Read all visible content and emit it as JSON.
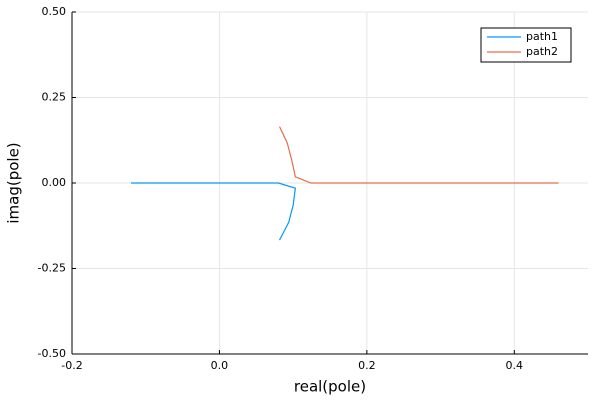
{
  "chart_data": {
    "type": "line",
    "xlabel": "real(pole)",
    "ylabel": "imag(pole)",
    "xlim": [
      -0.2,
      0.5
    ],
    "ylim": [
      -0.5,
      0.5
    ],
    "xticks": [
      -0.2,
      {
        "value": 0,
        "label": "0.0"
      },
      0.2,
      0.4
    ],
    "yticks": [
      {
        "value": -0.5,
        "label": "-0.50"
      },
      {
        "value": -0.25,
        "label": "-0.25"
      },
      {
        "value": 0,
        "label": "0.00"
      },
      {
        "value": 0.25,
        "label": "0.25"
      },
      {
        "value": 0.5,
        "label": "0.50"
      }
    ],
    "grid": true,
    "legend": "top-right",
    "series": [
      {
        "name": "path1",
        "color": "#009af9",
        "x": [
          -0.12,
          0.08,
          0.103,
          0.1,
          0.094,
          0.0815
        ],
        "values": [
          0,
          0,
          -0.015,
          -0.065,
          -0.115,
          -0.167
        ]
      },
      {
        "name": "path2",
        "color": "#e26f46",
        "x": [
          0.46,
          0.124,
          0.103,
          0.098,
          0.092,
          0.0815
        ],
        "values": [
          0,
          0,
          0.018,
          0.068,
          0.117,
          0.165
        ]
      }
    ]
  }
}
